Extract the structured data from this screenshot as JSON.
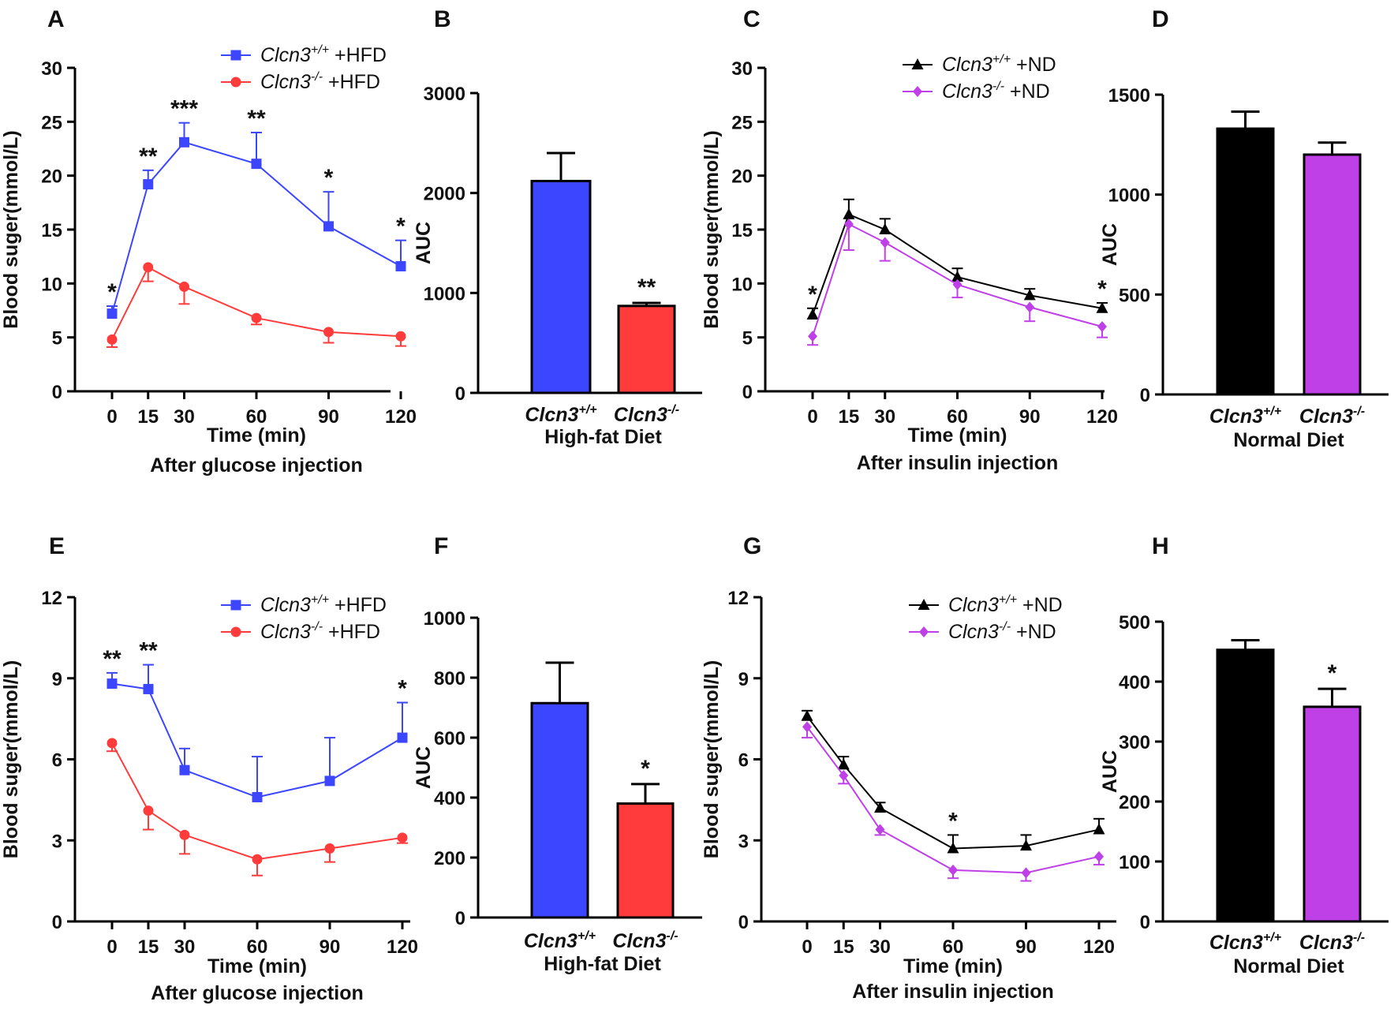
{
  "colors": {
    "blue": "#3c46ff",
    "red": "#ff3b3b",
    "line_blue": "#4650ee",
    "line_red": "#ec4a4a",
    "black": "#000000",
    "purple": "#c040e8"
  },
  "chart_data": [
    {
      "panel": "A",
      "type": "line",
      "xlabel": "Time (min)",
      "subtitle": "After glucose injection",
      "ylabel": "Blood suger(mmol/L)",
      "ylim": [
        0,
        30
      ],
      "yticks": [
        0,
        5,
        10,
        15,
        20,
        25,
        30
      ],
      "x": [
        0,
        15,
        30,
        60,
        90,
        120
      ],
      "xticks": [
        "0",
        "15",
        "30",
        "60",
        "90",
        "120"
      ],
      "series": [
        {
          "name": "Clcn3+/+ +HFD",
          "gene": "Clcn3",
          "genotype": "+/+",
          "suffix": " +HFD",
          "color": "blue",
          "marker": "square",
          "values": [
            7.2,
            19.2,
            23.1,
            21.1,
            15.3,
            11.6
          ],
          "errors": [
            0.7,
            1.3,
            1.8,
            2.9,
            3.2,
            2.4
          ]
        },
        {
          "name": "Clcn3-/- +HFD",
          "gene": "Clcn3",
          "genotype": "-/-",
          "suffix": " +HFD",
          "color": "red",
          "marker": "circle",
          "values": [
            4.8,
            11.5,
            9.7,
            6.8,
            5.5,
            5.1
          ],
          "errors": [
            0.7,
            1.3,
            1.6,
            0.6,
            1.0,
            0.9
          ]
        }
      ],
      "significance": [
        {
          "x": 0,
          "label": "*"
        },
        {
          "x": 15,
          "label": "**"
        },
        {
          "x": 30,
          "label": "***"
        },
        {
          "x": 60,
          "label": "**"
        },
        {
          "x": 90,
          "label": "*"
        },
        {
          "x": 120,
          "label": "*"
        }
      ]
    },
    {
      "panel": "B",
      "type": "bar",
      "xlabel": "High-fat Diet",
      "ylabel": "AUC",
      "ylim": [
        0,
        3000
      ],
      "yticks": [
        0,
        1000,
        2000,
        3000
      ],
      "categories": [
        {
          "gene": "Clcn3",
          "genotype": "+/+"
        },
        {
          "gene": "Clcn3",
          "genotype": "-/-"
        }
      ],
      "values": [
        2120,
        870
      ],
      "errors": [
        280,
        30
      ],
      "bar_colors": [
        "blue",
        "red"
      ],
      "significance": [
        "",
        "**"
      ]
    },
    {
      "panel": "C",
      "type": "line",
      "xlabel": "Time (min)",
      "subtitle": "After insulin injection",
      "ylabel": "Blood suger(mmol/L)",
      "ylim": [
        0,
        30
      ],
      "yticks": [
        0,
        5,
        10,
        15,
        20,
        25,
        30
      ],
      "x": [
        0,
        15,
        30,
        60,
        90,
        120
      ],
      "xticks": [
        "0",
        "15",
        "30",
        "60",
        "90",
        "120"
      ],
      "series": [
        {
          "name": "Clcn3+/+ +ND",
          "gene": "Clcn3",
          "genotype": "+/+",
          "suffix": " +ND",
          "color": "black",
          "marker": "triangle",
          "values": [
            7.1,
            16.4,
            15.0,
            10.6,
            8.9,
            7.7
          ],
          "errors": [
            0.6,
            1.4,
            1.0,
            0.8,
            0.6,
            0.5
          ]
        },
        {
          "name": "Clcn3-/- +ND",
          "gene": "Clcn3",
          "genotype": "-/-",
          "suffix": "  +ND",
          "color": "purple",
          "marker": "diamond",
          "values": [
            5.1,
            15.5,
            13.8,
            9.9,
            7.8,
            6.0
          ],
          "errors": [
            0.8,
            2.4,
            1.7,
            1.2,
            1.3,
            1.0
          ]
        }
      ],
      "significance": [
        {
          "x": 0,
          "label": "*"
        },
        {
          "x": 120,
          "label": "*"
        }
      ]
    },
    {
      "panel": "D",
      "type": "bar",
      "xlabel": "Normal Diet",
      "ylabel": "AUC",
      "ylim": [
        0,
        1500
      ],
      "yticks": [
        0,
        500,
        1000,
        1500
      ],
      "categories": [
        {
          "gene": "Clcn3",
          "genotype": "+/+"
        },
        {
          "gene": "Clcn3",
          "genotype": "-/-"
        }
      ],
      "values": [
        1330,
        1200
      ],
      "errors": [
        85,
        60
      ],
      "bar_colors": [
        "black",
        "purple"
      ],
      "significance": [
        "",
        ""
      ]
    },
    {
      "panel": "E",
      "type": "line",
      "xlabel": "Time (min)",
      "subtitle": "After glucose injection",
      "ylabel": "Blood suger(mmol/L)",
      "ylim": [
        0,
        12
      ],
      "yticks": [
        0,
        3,
        6,
        9,
        12
      ],
      "x": [
        0,
        15,
        30,
        60,
        90,
        120
      ],
      "xticks": [
        "0",
        "15",
        "30",
        "60",
        "90",
        "120"
      ],
      "series": [
        {
          "name": "Clcn3+/+ +HFD",
          "gene": "Clcn3",
          "genotype": "+/+",
          "suffix": " +HFD",
          "color": "blue",
          "marker": "square",
          "values": [
            8.8,
            8.6,
            5.6,
            4.6,
            5.2,
            6.8
          ],
          "errors": [
            0.4,
            0.9,
            0.8,
            1.5,
            1.6,
            1.3
          ]
        },
        {
          "name": "Clcn3-/- +HFD",
          "gene": "Clcn3",
          "genotype": "-/-",
          "suffix": " +HFD",
          "color": "red",
          "marker": "circle",
          "values": [
            6.6,
            4.1,
            3.2,
            2.3,
            2.7,
            3.1
          ],
          "errors": [
            0.3,
            0.7,
            0.7,
            0.6,
            0.5,
            0.2
          ]
        }
      ],
      "significance": [
        {
          "x": 0,
          "label": "**"
        },
        {
          "x": 15,
          "label": "**"
        },
        {
          "x": 120,
          "label": "*"
        }
      ]
    },
    {
      "panel": "F",
      "type": "bar",
      "xlabel": "High-fat Diet",
      "ylabel": "AUC",
      "ylim": [
        0,
        1000
      ],
      "yticks": [
        0,
        200,
        400,
        600,
        800,
        1000
      ],
      "categories": [
        {
          "gene": "Clcn3",
          "genotype": "+/+"
        },
        {
          "gene": "Clcn3",
          "genotype": "-/-"
        }
      ],
      "values": [
        715,
        380
      ],
      "errors": [
        135,
        65
      ],
      "bar_colors": [
        "blue",
        "red"
      ],
      "significance": [
        "",
        "*"
      ]
    },
    {
      "panel": "G",
      "type": "line",
      "xlabel": "Time (min)",
      "subtitle": "After insulin injection",
      "ylabel": "Blood suger(mmol/L)",
      "ylim": [
        0,
        12
      ],
      "yticks": [
        0,
        3,
        6,
        9,
        12
      ],
      "x": [
        0,
        15,
        30,
        60,
        90,
        120
      ],
      "xticks": [
        "0",
        "15",
        "30",
        "60",
        "90",
        "120"
      ],
      "series": [
        {
          "name": "Clcn3+/+ +ND",
          "gene": "Clcn3",
          "genotype": "+/+",
          "suffix": " +ND",
          "color": "black",
          "marker": "triangle",
          "values": [
            7.6,
            5.8,
            4.2,
            2.7,
            2.8,
            3.4
          ],
          "errors": [
            0.2,
            0.3,
            0.2,
            0.5,
            0.4,
            0.4
          ]
        },
        {
          "name": "Clcn3-/- +ND",
          "gene": "Clcn3",
          "genotype": "-/-",
          "suffix": "  +ND",
          "color": "purple",
          "marker": "diamond",
          "values": [
            7.2,
            5.4,
            3.4,
            1.9,
            1.8,
            2.4
          ],
          "errors": [
            0.4,
            0.3,
            0.2,
            0.3,
            0.3,
            0.3
          ]
        }
      ],
      "significance": [
        {
          "x": 60,
          "label": "*"
        }
      ]
    },
    {
      "panel": "H",
      "type": "bar",
      "xlabel": "Normal Diet",
      "ylabel": "AUC",
      "ylim": [
        0,
        500
      ],
      "yticks": [
        0,
        100,
        200,
        300,
        400,
        500
      ],
      "categories": [
        {
          "gene": "Clcn3",
          "genotype": "+/+"
        },
        {
          "gene": "Clcn3",
          "genotype": "-/-"
        }
      ],
      "values": [
        453,
        358
      ],
      "errors": [
        16,
        30
      ],
      "bar_colors": [
        "black",
        "purple"
      ],
      "significance": [
        "",
        "*"
      ]
    }
  ]
}
